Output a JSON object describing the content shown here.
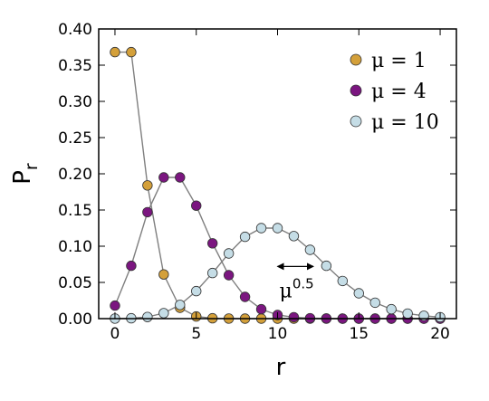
{
  "chart_data": {
    "type": "line",
    "xlabel": "r",
    "ylabel_main": "P",
    "ylabel_sub": "r",
    "xlim": [
      -1,
      21
    ],
    "ylim": [
      0,
      0.4
    ],
    "xticks": [
      "0",
      "5",
      "10",
      "15",
      "20"
    ],
    "yticks": [
      "0.00",
      "0.05",
      "0.10",
      "0.15",
      "0.20",
      "0.25",
      "0.30",
      "0.35",
      "0.40"
    ],
    "legend_position": "top-right",
    "x": [
      0,
      1,
      2,
      3,
      4,
      5,
      6,
      7,
      8,
      9,
      10,
      11,
      12,
      13,
      14,
      15,
      16,
      17,
      18,
      19,
      20
    ],
    "series": [
      {
        "name": "μ = 1",
        "color": "#d4a03a",
        "values": [
          0.368,
          0.368,
          0.184,
          0.061,
          0.015,
          0.003,
          0.0005,
          0.0001,
          0,
          0,
          0,
          0,
          0,
          0,
          0,
          0,
          0,
          0,
          0,
          0,
          0
        ]
      },
      {
        "name": "μ = 4",
        "color": "#7b1680",
        "values": [
          0.018,
          0.073,
          0.147,
          0.195,
          0.195,
          0.156,
          0.104,
          0.06,
          0.03,
          0.013,
          0.005,
          0.002,
          0.0006,
          0.0002,
          0,
          0,
          0,
          0,
          0,
          0,
          0
        ]
      },
      {
        "name": "μ = 10",
        "color": "#c5dde6",
        "values": [
          5e-05,
          0.0005,
          0.0023,
          0.0076,
          0.019,
          0.038,
          0.063,
          0.09,
          0.113,
          0.125,
          0.125,
          0.114,
          0.095,
          0.073,
          0.052,
          0.035,
          0.022,
          0.013,
          0.007,
          0.004,
          0.002
        ]
      }
    ],
    "annotation": {
      "base": "μ",
      "exp": "0.5",
      "arrow_from": 10,
      "arrow_to": 12.2,
      "arrow_y": 0.072
    }
  }
}
